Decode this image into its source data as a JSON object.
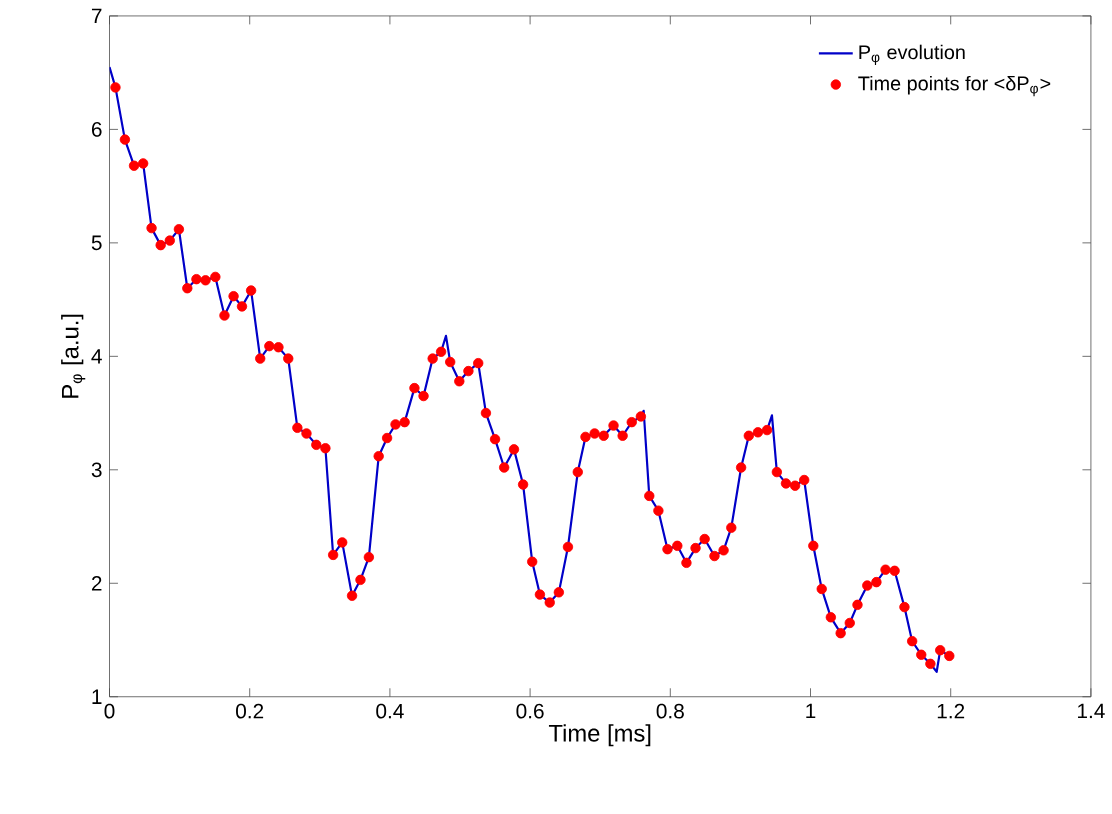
{
  "chart_data": {
    "type": "line",
    "xlabel": "Time [ms]",
    "ylabel": "P$_{φ}$ [a.u.]",
    "xlim": [
      0,
      1.4
    ],
    "ylim": [
      1,
      7
    ],
    "xticks": [
      0,
      0.2,
      0.4,
      0.6,
      0.8,
      1,
      1.2,
      1.4
    ],
    "yticks": [
      1,
      2,
      3,
      4,
      5,
      6,
      7
    ],
    "legend": "top right",
    "series": [
      {
        "name": "P$_{φ}$ evolution",
        "color": "#0000c8",
        "marker": "none",
        "x": [
          0,
          0.0085,
          0.022,
          0.035,
          0.048,
          0.06,
          0.073,
          0.086,
          0.099,
          0.111,
          0.124,
          0.137,
          0.151,
          0.164,
          0.177,
          0.189,
          0.202,
          0.215,
          0.228,
          0.241,
          0.255,
          0.268,
          0.281,
          0.295,
          0.308,
          0.319,
          0.332,
          0.346,
          0.358,
          0.37,
          0.384,
          0.396,
          0.408,
          0.421,
          0.435,
          0.448,
          0.461,
          0.473,
          0.48,
          0.486,
          0.499,
          0.512,
          0.526,
          0.537,
          0.55,
          0.563,
          0.577,
          0.59,
          0.603,
          0.614,
          0.628,
          0.641,
          0.654,
          0.668,
          0.679,
          0.692,
          0.705,
          0.719,
          0.732,
          0.745,
          0.758,
          0.762,
          0.77,
          0.783,
          0.796,
          0.81,
          0.823,
          0.836,
          0.849,
          0.863,
          0.876,
          0.887,
          0.901,
          0.912,
          0.925,
          0.938,
          0.945,
          0.952,
          0.965,
          0.978,
          0.991,
          1.004,
          1.016,
          1.029,
          1.043,
          1.056,
          1.067,
          1.081,
          1.094,
          1.107,
          1.12,
          1.134,
          1.145,
          1.158,
          1.171,
          1.18,
          1.185,
          1.198
        ],
        "values": [
          6.55,
          6.37,
          5.91,
          5.68,
          5.7,
          5.13,
          4.98,
          5.02,
          5.12,
          4.6,
          4.68,
          4.67,
          4.7,
          4.36,
          4.53,
          4.44,
          4.58,
          3.98,
          4.09,
          4.08,
          3.98,
          3.37,
          3.32,
          3.22,
          3.19,
          2.25,
          2.36,
          1.89,
          2.03,
          2.23,
          3.12,
          3.28,
          3.4,
          3.42,
          3.72,
          3.65,
          3.98,
          4.04,
          4.18,
          3.95,
          3.78,
          3.87,
          3.94,
          3.5,
          3.27,
          3.02,
          3.18,
          2.87,
          2.19,
          1.9,
          1.83,
          1.92,
          2.32,
          2.98,
          3.29,
          3.32,
          3.3,
          3.39,
          3.3,
          3.42,
          3.47,
          3.52,
          2.77,
          2.64,
          2.3,
          2.33,
          2.18,
          2.31,
          2.39,
          2.24,
          2.29,
          2.49,
          3.02,
          3.3,
          3.33,
          3.35,
          3.48,
          2.98,
          2.88,
          2.86,
          2.91,
          2.33,
          1.95,
          1.7,
          1.56,
          1.65,
          1.81,
          1.98,
          2.01,
          2.12,
          2.11,
          1.79,
          1.49,
          1.37,
          1.29,
          1.22,
          1.41,
          1.36
        ]
      },
      {
        "name": "Time points for <δP$_{φ}$>",
        "type": "scatter",
        "color": "#ff0000",
        "marker": "circle",
        "x": [
          0.0085,
          0.022,
          0.035,
          0.048,
          0.06,
          0.073,
          0.086,
          0.099,
          0.111,
          0.124,
          0.137,
          0.151,
          0.164,
          0.177,
          0.189,
          0.202,
          0.215,
          0.228,
          0.241,
          0.255,
          0.268,
          0.281,
          0.295,
          0.308,
          0.319,
          0.332,
          0.346,
          0.358,
          0.37,
          0.384,
          0.396,
          0.408,
          0.421,
          0.435,
          0.448,
          0.461,
          0.473,
          0.486,
          0.499,
          0.512,
          0.526,
          0.537,
          0.55,
          0.563,
          0.577,
          0.59,
          0.603,
          0.614,
          0.628,
          0.641,
          0.654,
          0.668,
          0.679,
          0.692,
          0.705,
          0.719,
          0.732,
          0.745,
          0.758,
          0.77,
          0.783,
          0.796,
          0.81,
          0.823,
          0.836,
          0.849,
          0.863,
          0.876,
          0.887,
          0.901,
          0.912,
          0.925,
          0.938,
          0.952,
          0.965,
          0.978,
          0.991,
          1.004,
          1.016,
          1.029,
          1.043,
          1.056,
          1.067,
          1.081,
          1.094,
          1.107,
          1.12,
          1.134,
          1.145,
          1.158,
          1.171,
          1.185,
          1.198
        ],
        "values": [
          6.37,
          5.91,
          5.68,
          5.7,
          5.13,
          4.98,
          5.02,
          5.12,
          4.6,
          4.68,
          4.67,
          4.7,
          4.36,
          4.53,
          4.44,
          4.58,
          3.98,
          4.09,
          4.08,
          3.98,
          3.37,
          3.32,
          3.22,
          3.19,
          2.25,
          2.36,
          1.89,
          2.03,
          2.23,
          3.12,
          3.28,
          3.4,
          3.42,
          3.72,
          3.65,
          3.98,
          4.04,
          3.95,
          3.78,
          3.87,
          3.94,
          3.5,
          3.27,
          3.02,
          3.18,
          2.87,
          2.19,
          1.9,
          1.83,
          1.92,
          2.32,
          2.98,
          3.29,
          3.32,
          3.3,
          3.39,
          3.3,
          3.42,
          3.47,
          2.77,
          2.64,
          2.3,
          2.33,
          2.18,
          2.31,
          2.39,
          2.24,
          2.29,
          2.49,
          3.02,
          3.3,
          3.33,
          3.35,
          2.98,
          2.88,
          2.86,
          2.91,
          2.33,
          1.95,
          1.7,
          1.56,
          1.65,
          1.81,
          1.98,
          2.01,
          2.12,
          2.11,
          1.79,
          1.49,
          1.37,
          1.29,
          1.41,
          1.36
        ]
      }
    ]
  }
}
